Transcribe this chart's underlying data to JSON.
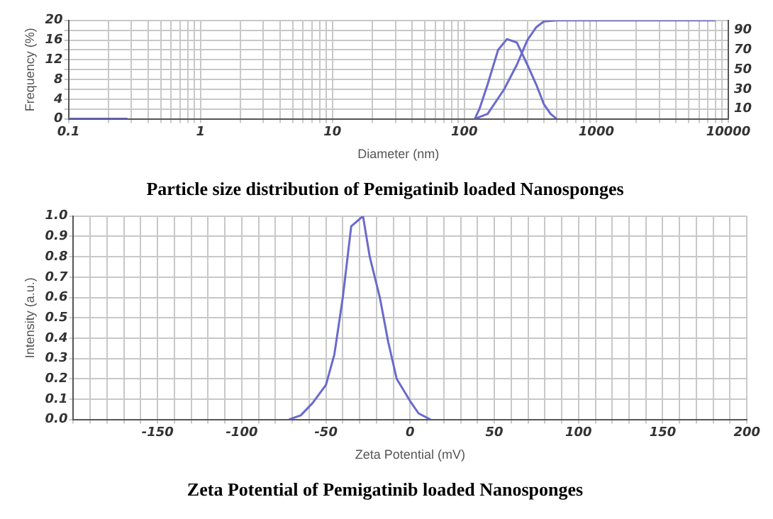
{
  "chart_data": [
    {
      "type": "line",
      "title": "Particle size distribution of Pemigatinib loaded Nanosponges",
      "xlabel": "Diameter (nm)",
      "ylabel": "Frequency (%)",
      "log": "x",
      "grid": true,
      "marker": "none",
      "xlim": [
        0.1,
        10000
      ],
      "xticks": [
        0.1,
        {
          "value": 0.2,
          "label": null
        },
        {
          "value": 0.3,
          "label": null
        },
        {
          "value": 0.4,
          "label": null
        },
        {
          "value": 0.5,
          "label": null
        },
        {
          "value": 0.6,
          "label": null
        },
        {
          "value": 0.7,
          "label": null
        },
        {
          "value": 0.8,
          "label": null
        },
        {
          "value": 0.9,
          "label": null
        },
        1,
        {
          "value": 2,
          "label": null
        },
        {
          "value": 3,
          "label": null
        },
        {
          "value": 4,
          "label": null
        },
        {
          "value": 5,
          "label": null
        },
        {
          "value": 6,
          "label": null
        },
        {
          "value": 7,
          "label": null
        },
        {
          "value": 8,
          "label": null
        },
        {
          "value": 9,
          "label": null
        },
        10,
        {
          "value": 20,
          "label": null
        },
        {
          "value": 30,
          "label": null
        },
        {
          "value": 40,
          "label": null
        },
        {
          "value": 50,
          "label": null
        },
        {
          "value": 60,
          "label": null
        },
        {
          "value": 70,
          "label": null
        },
        {
          "value": 80,
          "label": null
        },
        {
          "value": 90,
          "label": null
        },
        100,
        {
          "value": 200,
          "label": null
        },
        {
          "value": 300,
          "label": null
        },
        {
          "value": 400,
          "label": null
        },
        {
          "value": 500,
          "label": null
        },
        {
          "value": 600,
          "label": null
        },
        {
          "value": 700,
          "label": null
        },
        {
          "value": 800,
          "label": null
        },
        {
          "value": 900,
          "label": null
        },
        1000,
        {
          "value": 2000,
          "label": null
        },
        {
          "value": 3000,
          "label": null
        },
        {
          "value": 4000,
          "label": null
        },
        {
          "value": 5000,
          "label": null
        },
        {
          "value": 6000,
          "label": null
        },
        {
          "value": 7000,
          "label": null
        },
        {
          "value": 8000,
          "label": null
        },
        {
          "value": 9000,
          "label": null
        },
        10000
      ],
      "ylim": [
        0,
        20
      ],
      "yticks": [
        0,
        {
          "value": 2,
          "label": null
        },
        4,
        {
          "value": 6,
          "label": null
        },
        8,
        {
          "value": 10,
          "label": null
        },
        12,
        {
          "value": 14,
          "label": null
        },
        16,
        {
          "value": 18,
          "label": null
        },
        20
      ],
      "y2lim": [
        0,
        100
      ],
      "y2ticks": [
        10,
        30,
        50,
        70,
        90
      ],
      "series": [
        {
          "color": "#6a6acd",
          "x": [
            0.1,
            0.28,
            null,
            120,
            130,
            150,
            180,
            210,
            250,
            300,
            350,
            400,
            450,
            500
          ],
          "values": [
            0,
            0,
            null,
            0,
            2,
            7,
            14,
            16.2,
            15.5,
            11,
            7,
            3,
            1,
            0
          ]
        },
        {
          "color": "#6a6acd",
          "axis": "y2",
          "x": [
            120,
            150,
            200,
            250,
            300,
            350,
            400,
            500,
            8000
          ],
          "values": [
            0,
            5,
            30,
            55,
            80,
            93,
            99,
            100,
            100
          ]
        }
      ]
    },
    {
      "type": "line",
      "title": "Zeta Potential of Pemigatinib loaded Nanosponges",
      "xlabel": "Zeta Potential (mV)",
      "ylabel": "Intensity (a.u.)",
      "grid": true,
      "marker": "none",
      "xlim": [
        -200,
        200
      ],
      "xticks": [
        {
          "value": -200,
          "label": null
        },
        {
          "value": -190,
          "label": null
        },
        {
          "value": -180,
          "label": null
        },
        {
          "value": -170,
          "label": null
        },
        {
          "value": -160,
          "label": null
        },
        -150,
        {
          "value": -140,
          "label": null
        },
        {
          "value": -130,
          "label": null
        },
        {
          "value": -120,
          "label": null
        },
        {
          "value": -110,
          "label": null
        },
        -100,
        {
          "value": -90,
          "label": null
        },
        {
          "value": -80,
          "label": null
        },
        {
          "value": -70,
          "label": null
        },
        {
          "value": -60,
          "label": null
        },
        -50,
        {
          "value": -40,
          "label": null
        },
        {
          "value": -30,
          "label": null
        },
        {
          "value": -20,
          "label": null
        },
        {
          "value": -10,
          "label": null
        },
        0,
        {
          "value": 10,
          "label": null
        },
        {
          "value": 20,
          "label": null
        },
        {
          "value": 30,
          "label": null
        },
        {
          "value": 40,
          "label": null
        },
        50,
        {
          "value": 60,
          "label": null
        },
        {
          "value": 70,
          "label": null
        },
        {
          "value": 80,
          "label": null
        },
        {
          "value": 90,
          "label": null
        },
        100,
        {
          "value": 110,
          "label": null
        },
        {
          "value": 120,
          "label": null
        },
        {
          "value": 130,
          "label": null
        },
        {
          "value": 140,
          "label": null
        },
        150,
        {
          "value": 160,
          "label": null
        },
        {
          "value": 170,
          "label": null
        },
        {
          "value": 180,
          "label": null
        },
        {
          "value": 190,
          "label": null
        },
        200
      ],
      "ylim": [
        0,
        1
      ],
      "yticks": [
        {
          "value": 0,
          "label": "0.0"
        },
        0.1,
        0.2,
        0.3,
        0.4,
        0.5,
        0.6,
        0.7,
        0.8,
        0.9,
        {
          "value": 1,
          "label": "1.0"
        }
      ],
      "series": [
        {
          "color": "#6a6acd",
          "x": [
            -72,
            -65,
            -58,
            -50,
            -45,
            -40,
            -35,
            -28,
            -24,
            -18,
            -13,
            -8,
            0,
            5,
            12
          ],
          "values": [
            0,
            0.02,
            0.08,
            0.17,
            0.32,
            0.6,
            0.95,
            1,
            0.8,
            0.6,
            0.38,
            0.2,
            0.09,
            0.03,
            0
          ]
        }
      ]
    }
  ]
}
